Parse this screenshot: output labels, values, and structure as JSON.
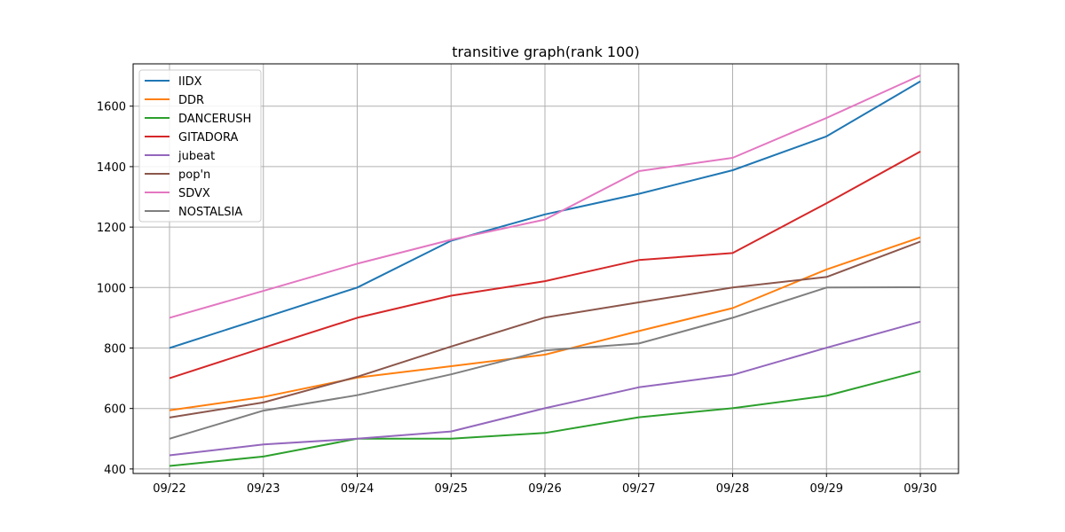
{
  "chart_data": {
    "type": "line",
    "title": "transitive graph(rank 100)",
    "xlabel": "",
    "ylabel": "",
    "categories": [
      "09/22",
      "09/23",
      "09/24",
      "09/25",
      "09/26",
      "09/27",
      "09/28",
      "09/29",
      "09/30"
    ],
    "ylim": [
      385,
      1740
    ],
    "yticks": [
      400,
      600,
      800,
      1000,
      1200,
      1400,
      1600
    ],
    "grid": true,
    "legend_position": "upper left",
    "series": [
      {
        "name": "IIDX",
        "color": "#1f77b4",
        "values": [
          800,
          900,
          1000,
          1155,
          1242,
          1310,
          1388,
          1500,
          1682
        ]
      },
      {
        "name": "DDR",
        "color": "#ff7f0e",
        "values": [
          594,
          638,
          702,
          740,
          778,
          856,
          932,
          1060,
          1166
        ]
      },
      {
        "name": "DANCERUSH",
        "color": "#2ca02c",
        "values": [
          410,
          441,
          500,
          500,
          519,
          571,
          601,
          642,
          723
        ]
      },
      {
        "name": "GITADORA",
        "color": "#d62728",
        "values": [
          700,
          801,
          900,
          973,
          1021,
          1091,
          1114,
          1279,
          1450
        ]
      },
      {
        "name": "jubeat",
        "color": "#9467bd",
        "values": [
          445,
          481,
          500,
          524,
          601,
          670,
          711,
          801,
          887
        ]
      },
      {
        "name": "pop'n",
        "color": "#8c564b",
        "values": [
          570,
          620,
          705,
          805,
          901,
          951,
          1000,
          1035,
          1152
        ]
      },
      {
        "name": "SDVX",
        "color": "#e377c2",
        "values": [
          900,
          989,
          1079,
          1158,
          1225,
          1385,
          1429,
          1561,
          1702
        ]
      },
      {
        "name": "NOSTALSIA",
        "color": "#7f7f7f",
        "values": [
          500,
          593,
          644,
          713,
          792,
          815,
          900,
          1000,
          1001
        ]
      }
    ]
  }
}
